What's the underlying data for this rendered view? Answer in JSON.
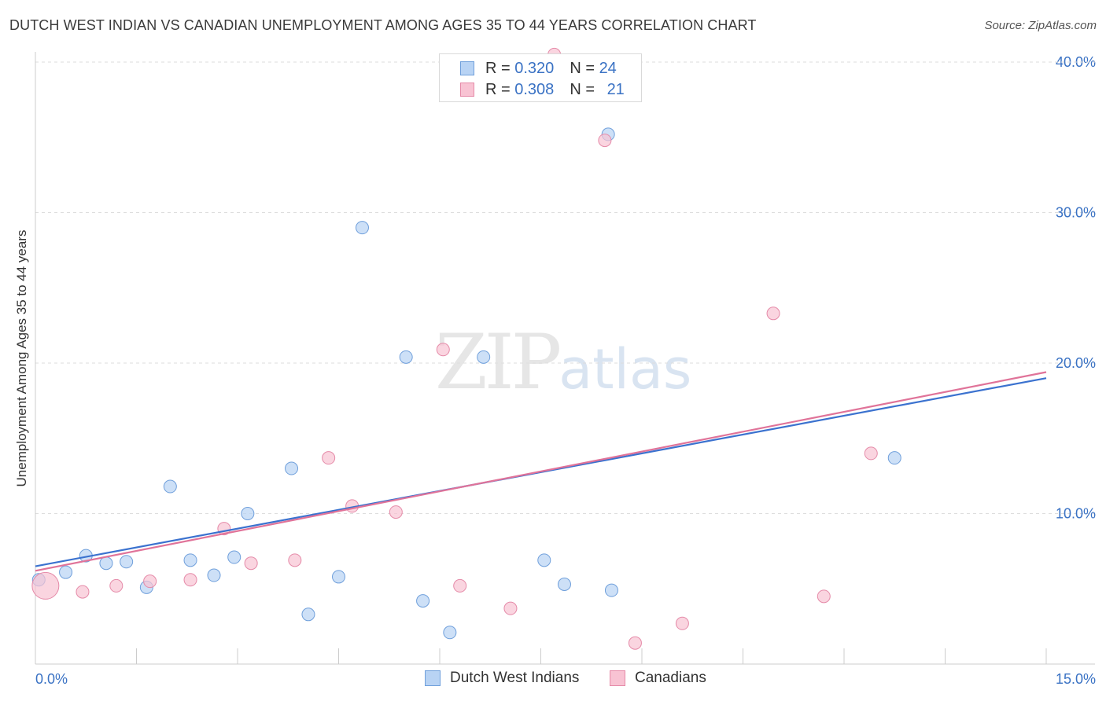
{
  "title": "DUTCH WEST INDIAN VS CANADIAN UNEMPLOYMENT AMONG AGES 35 TO 44 YEARS CORRELATION CHART",
  "source": "Source: ZipAtlas.com",
  "watermark": {
    "zip": "ZIP",
    "atlas": "atlas"
  },
  "colors": {
    "blue_fill": "#b8d3f4",
    "blue_stroke": "#6f9fdb",
    "blue_line": "#3b72cf",
    "pink_fill": "#f8c3d3",
    "pink_stroke": "#e58aa8",
    "pink_line": "#e07399",
    "tick_text": "#3a72c4",
    "grid": "#dddddd"
  },
  "legend": {
    "rows": [
      {
        "r_label": "R = ",
        "r_value": "0.320",
        "n_label": "N = ",
        "n_value": "24"
      },
      {
        "r_label": "R = ",
        "r_value": "0.308",
        "n_label": "N = ",
        "n_value": "21"
      }
    ]
  },
  "bottom_legend": {
    "series1": "Dutch West Indians",
    "series2": "Canadians"
  },
  "chart_data": {
    "type": "scatter",
    "ylabel": "Unemployment Among Ages 35 to 44 years",
    "xlim": [
      0,
      15
    ],
    "ylim": [
      0,
      40
    ],
    "x_tick_labels": [
      "0.0%",
      "15.0%"
    ],
    "y_ticks": [
      10,
      20,
      30,
      40
    ],
    "y_tick_labels": [
      "10.0%",
      "20.0%",
      "30.0%",
      "40.0%"
    ],
    "grid": true,
    "series": [
      {
        "name": "Dutch West Indians",
        "points": [
          [
            0.05,
            5.6
          ],
          [
            0.45,
            6.1
          ],
          [
            0.75,
            7.2
          ],
          [
            1.05,
            6.7
          ],
          [
            1.35,
            6.8
          ],
          [
            1.65,
            5.1
          ],
          [
            2.0,
            11.8
          ],
          [
            2.3,
            6.9
          ],
          [
            2.65,
            5.9
          ],
          [
            2.95,
            7.1
          ],
          [
            3.15,
            10.0
          ],
          [
            3.8,
            13.0
          ],
          [
            4.05,
            3.3
          ],
          [
            4.5,
            5.8
          ],
          [
            4.85,
            29.0
          ],
          [
            5.5,
            20.4
          ],
          [
            5.75,
            4.2
          ],
          [
            6.15,
            2.1
          ],
          [
            6.65,
            20.4
          ],
          [
            7.55,
            6.9
          ],
          [
            7.85,
            5.3
          ],
          [
            8.5,
            35.2
          ],
          [
            8.55,
            4.9
          ],
          [
            12.75,
            13.7
          ]
        ],
        "trend": {
          "x0": 0,
          "y0": 6.5,
          "x1": 15,
          "y1": 19.0
        }
      },
      {
        "name": "Canadians",
        "points": [
          [
            0.15,
            5.2
          ],
          [
            0.7,
            4.8
          ],
          [
            1.2,
            5.2
          ],
          [
            1.7,
            5.5
          ],
          [
            2.3,
            5.6
          ],
          [
            2.8,
            9.0
          ],
          [
            3.2,
            6.7
          ],
          [
            3.85,
            6.9
          ],
          [
            4.35,
            13.7
          ],
          [
            4.7,
            10.5
          ],
          [
            5.35,
            10.1
          ],
          [
            6.05,
            20.9
          ],
          [
            6.3,
            5.2
          ],
          [
            7.05,
            3.7
          ],
          [
            7.7,
            40.5
          ],
          [
            8.45,
            34.8
          ],
          [
            8.9,
            1.4
          ],
          [
            9.6,
            2.7
          ],
          [
            10.95,
            23.3
          ],
          [
            11.7,
            4.5
          ],
          [
            12.4,
            14.0
          ]
        ],
        "trend": {
          "x0": 0,
          "y0": 6.2,
          "x1": 15,
          "y1": 19.4
        }
      }
    ]
  }
}
